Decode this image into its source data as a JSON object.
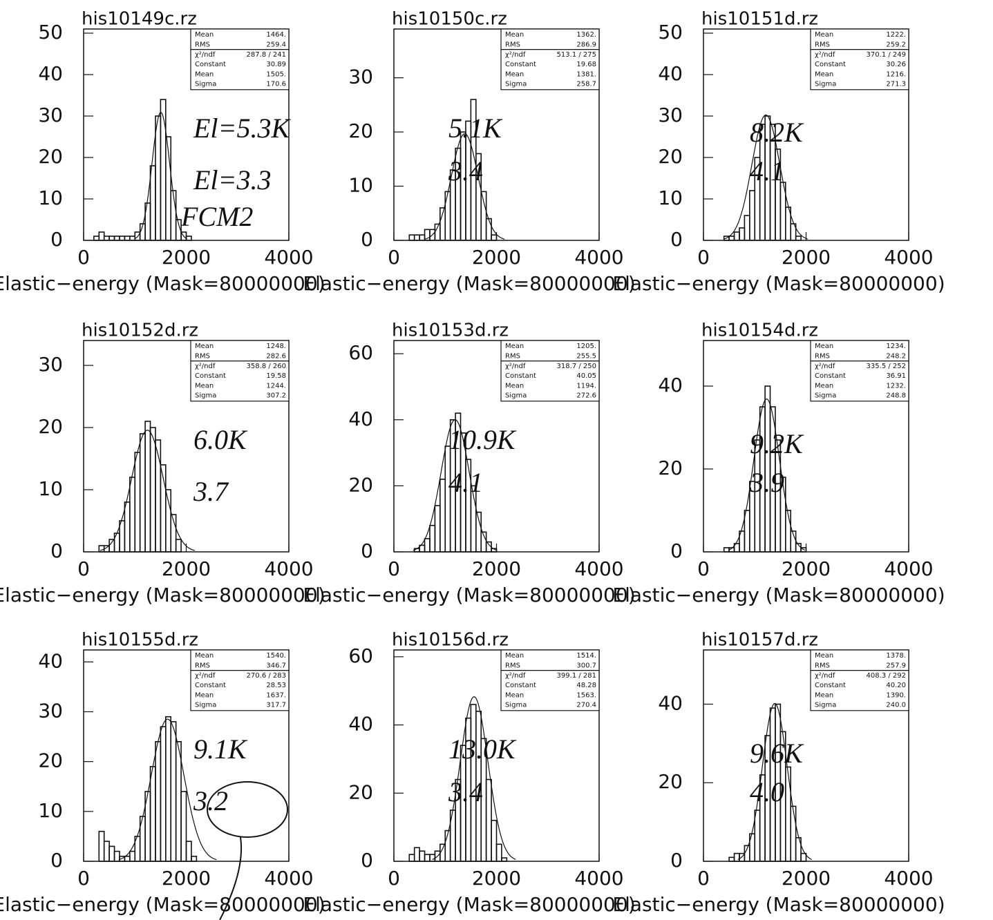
{
  "chart_data": [
    {
      "type": "histogram",
      "title": "his10149c.rz",
      "x_label": "Elastic−energy (Mask=80000000)",
      "bins": [
        200,
        300,
        400,
        500,
        600,
        700,
        800,
        900,
        1000,
        1100,
        1200,
        1300,
        1400,
        1500,
        1600,
        1700,
        1800,
        1900,
        2000,
        2100,
        2200,
        2300,
        2400
      ],
      "values": [
        1,
        2,
        1,
        1,
        1,
        1,
        1,
        1,
        2,
        4,
        9,
        18,
        30,
        34,
        25,
        12,
        5,
        2,
        1,
        0,
        0,
        0
      ],
      "xlim": [
        0,
        4000
      ],
      "xticks": [
        0,
        2000,
        4000
      ],
      "ylim": [
        0,
        51
      ],
      "yticks": [
        0,
        10,
        20,
        30,
        40,
        50
      ],
      "stats": [
        {
          "name": "Mean",
          "value": 1464,
          "label": "1464."
        },
        {
          "name": "RMS",
          "value": 259.4
        },
        {
          "name": "χ²/ndf",
          "label": "287.8  /  241"
        },
        {
          "name": "Constant",
          "value": 30.89
        },
        {
          "name": "Mean",
          "value": 1505,
          "label": "1505."
        },
        {
          "name": "Sigma",
          "value": 170.6
        }
      ],
      "annotations": [
        "El=5.3K",
        "El=3.3",
        "FCM2"
      ]
    },
    {
      "type": "histogram",
      "title": "his10150c.rz",
      "x_label": "Elastic−energy (Mask=80000000)",
      "bins": [
        200,
        300,
        400,
        500,
        600,
        700,
        800,
        900,
        1000,
        1100,
        1200,
        1300,
        1400,
        1500,
        1600,
        1700,
        1800,
        1900,
        2000,
        2100,
        2200,
        2300,
        2400
      ],
      "values": [
        0,
        1,
        1,
        1,
        2,
        2,
        3,
        6,
        9,
        13,
        17,
        20,
        22,
        26,
        16,
        9,
        4,
        1,
        0,
        0,
        0,
        0
      ],
      "xlim": [
        0,
        4000
      ],
      "xticks": [
        0,
        2000,
        4000
      ],
      "ylim": [
        0,
        39
      ],
      "yticks": [
        0,
        10,
        20,
        30
      ],
      "stats": [
        {
          "name": "Mean",
          "value": 1362,
          "label": "1362."
        },
        {
          "name": "RMS",
          "value": 286.9
        },
        {
          "name": "χ²/ndf",
          "label": "513.1  /  275"
        },
        {
          "name": "Constant",
          "value": 19.68
        },
        {
          "name": "Mean",
          "value": 1381,
          "label": "1381."
        },
        {
          "name": "Sigma",
          "value": 258.7
        }
      ],
      "annotations": [
        "5.1K",
        "3.4"
      ]
    },
    {
      "type": "histogram",
      "title": "his10151d.rz",
      "x_label": "Elastic−energy (Mask=80000000)",
      "bins": [
        200,
        300,
        400,
        500,
        600,
        700,
        800,
        900,
        1000,
        1100,
        1200,
        1300,
        1400,
        1500,
        1600,
        1700,
        1800,
        1900,
        2000,
        2100,
        2200,
        2300,
        2400
      ],
      "values": [
        0,
        0,
        1,
        1,
        2,
        3,
        6,
        12,
        20,
        28,
        30,
        28,
        22,
        14,
        8,
        4,
        1,
        0,
        0,
        0,
        0,
        0
      ],
      "xlim": [
        0,
        4000
      ],
      "xticks": [
        0,
        2000,
        4000
      ],
      "ylim": [
        0,
        51
      ],
      "yticks": [
        0,
        10,
        20,
        30,
        40,
        50
      ],
      "stats": [
        {
          "name": "Mean",
          "value": 1222,
          "label": "1222."
        },
        {
          "name": "RMS",
          "value": 259.2
        },
        {
          "name": "χ²/ndf",
          "label": "370.1  /  249"
        },
        {
          "name": "Constant",
          "value": 30.26
        },
        {
          "name": "Mean",
          "value": 1216,
          "label": "1216."
        },
        {
          "name": "Sigma",
          "value": 271.3
        }
      ],
      "annotations": [
        "8.2K",
        "4.1"
      ]
    },
    {
      "type": "histogram",
      "title": "his10152d.rz",
      "x_label": "Elastic−energy (Mask=80000000)",
      "bins": [
        200,
        300,
        400,
        500,
        600,
        700,
        800,
        900,
        1000,
        1100,
        1200,
        1300,
        1400,
        1500,
        1600,
        1700,
        1800,
        1900,
        2000,
        2100,
        2200,
        2300,
        2400
      ],
      "values": [
        0,
        1,
        1,
        2,
        3,
        5,
        8,
        12,
        16,
        19,
        21,
        20,
        18,
        14,
        10,
        6,
        2,
        0,
        0,
        0,
        0,
        0
      ],
      "xlim": [
        0,
        4000
      ],
      "xticks": [
        0,
        2000,
        4000
      ],
      "ylim": [
        0,
        34
      ],
      "yticks": [
        0,
        10,
        20,
        30
      ],
      "stats": [
        {
          "name": "Mean",
          "value": 1248,
          "label": "1248."
        },
        {
          "name": "RMS",
          "value": 282.6
        },
        {
          "name": "χ²/ndf",
          "label": "358.8  /  260"
        },
        {
          "name": "Constant",
          "value": 19.58
        },
        {
          "name": "Mean",
          "value": 1244,
          "label": "1244."
        },
        {
          "name": "Sigma",
          "value": 307.2
        }
      ],
      "annotations": [
        "6.0K",
        "3.7"
      ]
    },
    {
      "type": "histogram",
      "title": "his10153d.rz",
      "x_label": "Elastic−energy (Mask=80000000)",
      "bins": [
        200,
        300,
        400,
        500,
        600,
        700,
        800,
        900,
        1000,
        1100,
        1200,
        1300,
        1400,
        1500,
        1600,
        1700,
        1800,
        1900,
        2000,
        2100,
        2200,
        2300,
        2400
      ],
      "values": [
        0,
        0,
        1,
        2,
        4,
        8,
        14,
        22,
        32,
        40,
        42,
        36,
        28,
        20,
        12,
        6,
        3,
        1,
        0,
        0,
        0,
        0
      ],
      "xlim": [
        0,
        4000
      ],
      "xticks": [
        0,
        2000,
        4000
      ],
      "ylim": [
        0,
        64
      ],
      "yticks": [
        0,
        20,
        40,
        60
      ],
      "stats": [
        {
          "name": "Mean",
          "value": 1205,
          "label": "1205."
        },
        {
          "name": "RMS",
          "value": 255.5
        },
        {
          "name": "χ²/ndf",
          "label": "318.7  /  250"
        },
        {
          "name": "Constant",
          "value": 40.05
        },
        {
          "name": "Mean",
          "value": 1194,
          "label": "1194."
        },
        {
          "name": "Sigma",
          "value": 272.6
        }
      ],
      "annotations": [
        "10.9K",
        "4.1"
      ]
    },
    {
      "type": "histogram",
      "title": "his10154d.rz",
      "x_label": "Elastic−energy (Mask=80000000)",
      "bins": [
        200,
        300,
        400,
        500,
        600,
        700,
        800,
        900,
        1000,
        1100,
        1200,
        1300,
        1400,
        1500,
        1600,
        1700,
        1800,
        1900,
        2000,
        2100,
        2200,
        2300,
        2400
      ],
      "values": [
        0,
        0,
        1,
        1,
        2,
        5,
        10,
        17,
        27,
        35,
        40,
        35,
        27,
        18,
        10,
        5,
        2,
        1,
        0,
        0,
        0,
        0
      ],
      "xlim": [
        0,
        4000
      ],
      "xticks": [
        0,
        2000,
        4000
      ],
      "ylim": [
        0,
        51
      ],
      "yticks": [
        0,
        20,
        40
      ],
      "stats": [
        {
          "name": "Mean",
          "value": 1234,
          "label": "1234."
        },
        {
          "name": "RMS",
          "value": 248.2
        },
        {
          "name": "χ²/ndf",
          "label": "335.5  /  252"
        },
        {
          "name": "Constant",
          "value": 36.91
        },
        {
          "name": "Mean",
          "value": 1232,
          "label": "1232."
        },
        {
          "name": "Sigma",
          "value": 248.8
        }
      ],
      "annotations": [
        "9.2K",
        "3.9"
      ]
    },
    {
      "type": "histogram",
      "title": "his10155d.rz",
      "x_label": "Elastic−energy (Mask=80000000)",
      "bins": [
        200,
        300,
        400,
        500,
        600,
        700,
        800,
        900,
        1000,
        1100,
        1200,
        1300,
        1400,
        1500,
        1600,
        1700,
        1800,
        1900,
        2000,
        2100,
        2200,
        2300,
        2400
      ],
      "values": [
        0,
        6,
        4,
        3,
        2,
        1,
        1,
        2,
        5,
        9,
        14,
        19,
        24,
        27,
        29,
        28,
        24,
        14,
        4,
        1,
        0,
        0
      ],
      "xlim": [
        0,
        4000
      ],
      "xticks": [
        0,
        2000,
        4000
      ],
      "ylim": [
        0,
        42.4
      ],
      "yticks": [
        0,
        10,
        20,
        30,
        40
      ],
      "stats": [
        {
          "name": "Mean",
          "value": 1540,
          "label": "1540."
        },
        {
          "name": "RMS",
          "value": 346.7
        },
        {
          "name": "χ²/ndf",
          "label": "270.6  /  283"
        },
        {
          "name": "Constant",
          "value": 28.53
        },
        {
          "name": "Mean",
          "value": 1637,
          "label": "1637."
        },
        {
          "name": "Sigma",
          "value": 317.7
        }
      ],
      "annotations": [
        "9.1K",
        "3.2"
      ]
    },
    {
      "type": "histogram",
      "title": "his10156d.rz",
      "x_label": "Elastic−energy (Mask=80000000)",
      "bins": [
        200,
        300,
        400,
        500,
        600,
        700,
        800,
        900,
        1000,
        1100,
        1200,
        1300,
        1400,
        1500,
        1600,
        1700,
        1800,
        1900,
        2000,
        2100,
        2200,
        2300,
        2400
      ],
      "values": [
        0,
        2,
        4,
        3,
        2,
        2,
        3,
        5,
        9,
        15,
        24,
        34,
        42,
        46,
        44,
        36,
        24,
        12,
        5,
        1,
        0,
        0
      ],
      "xlim": [
        0,
        4000
      ],
      "xticks": [
        0,
        2000,
        4000
      ],
      "ylim": [
        0,
        62
      ],
      "yticks": [
        0,
        20,
        40,
        60
      ],
      "stats": [
        {
          "name": "Mean",
          "value": 1514,
          "label": "1514."
        },
        {
          "name": "RMS",
          "value": 300.7
        },
        {
          "name": "χ²/ndf",
          "label": "399.1  /  281"
        },
        {
          "name": "Constant",
          "value": 48.28
        },
        {
          "name": "Mean",
          "value": 1563,
          "label": "1563."
        },
        {
          "name": "Sigma",
          "value": 270.4
        }
      ],
      "annotations": [
        "13.0K",
        "3.4"
      ]
    },
    {
      "type": "histogram",
      "title": "his10157d.rz",
      "x_label": "Elastic−energy (Mask=80000000)",
      "bins": [
        200,
        300,
        400,
        500,
        600,
        700,
        800,
        900,
        1000,
        1100,
        1200,
        1300,
        1400,
        1500,
        1600,
        1700,
        1800,
        1900,
        2000,
        2100,
        2200,
        2300,
        2400
      ],
      "values": [
        0,
        0,
        0,
        1,
        2,
        2,
        4,
        7,
        13,
        22,
        32,
        39,
        40,
        33,
        24,
        14,
        6,
        2,
        0,
        0,
        0,
        0
      ],
      "xlim": [
        0,
        4000
      ],
      "xticks": [
        0,
        2000,
        4000
      ],
      "ylim": [
        0,
        53.8
      ],
      "yticks": [
        0,
        20,
        40
      ],
      "stats": [
        {
          "name": "Mean",
          "value": 1378,
          "label": "1378."
        },
        {
          "name": "RMS",
          "value": 257.9
        },
        {
          "name": "χ²/ndf",
          "label": "408.3  /  292"
        },
        {
          "name": "Constant",
          "value": 40.2,
          "label": "40.20"
        },
        {
          "name": "Mean",
          "value": 1390,
          "label": "1390."
        },
        {
          "name": "Sigma",
          "value": 240,
          "label": "240.0"
        }
      ],
      "annotations": [
        "9.6K",
        "4.0"
      ]
    }
  ]
}
